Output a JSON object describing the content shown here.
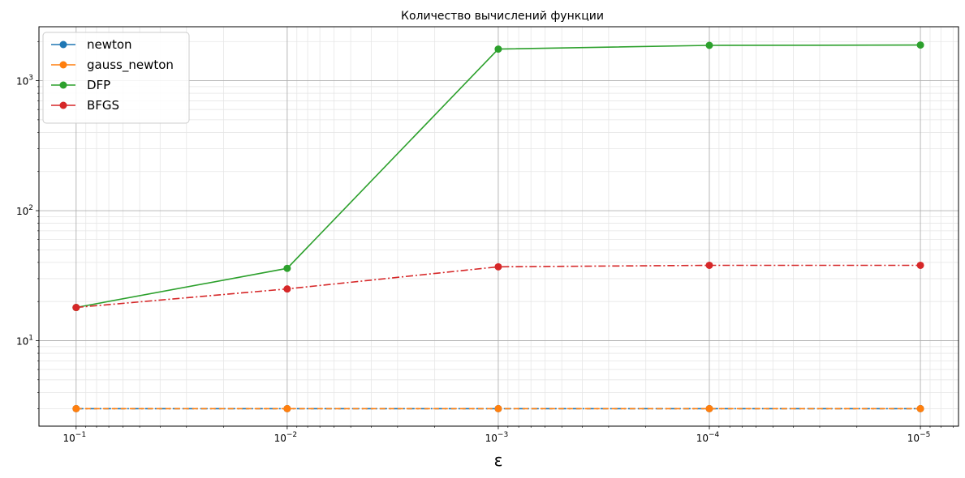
{
  "chart_data": {
    "type": "line",
    "title": "Количество вычислений функции",
    "xlabel": "ε",
    "ylabel": "",
    "xscale": "log",
    "yscale": "log",
    "x_inverted": true,
    "x": [
      0.1,
      0.01,
      0.001,
      0.0001,
      1e-05
    ],
    "xlim": [
      0.15,
      6.6e-06
    ],
    "ylim": [
      2.2,
      2600
    ],
    "x_ticks": [
      {
        "value": 0.1,
        "base": "10",
        "exp": "−1"
      },
      {
        "value": 0.01,
        "base": "10",
        "exp": "−2"
      },
      {
        "value": 0.001,
        "base": "10",
        "exp": "−3"
      },
      {
        "value": 0.0001,
        "base": "10",
        "exp": "−4"
      },
      {
        "value": 1e-05,
        "base": "10",
        "exp": "−5"
      }
    ],
    "y_ticks": [
      {
        "value": 10,
        "base": "10",
        "exp": "1"
      },
      {
        "value": 100,
        "base": "10",
        "exp": "2"
      },
      {
        "value": 1000,
        "base": "10",
        "exp": "3"
      }
    ],
    "grid": true,
    "legend_position": "top-left",
    "series": [
      {
        "name": "newton",
        "values": [
          3,
          3,
          3,
          3,
          3
        ],
        "color": "#1f77b4",
        "dash": "dashdot"
      },
      {
        "name": "gauss_newton",
        "values": [
          3,
          3,
          3,
          3,
          3
        ],
        "color": "#ff7f0e",
        "dash": "dashed"
      },
      {
        "name": "DFP",
        "values": [
          18,
          36,
          1750,
          1870,
          1880
        ],
        "color": "#2ca02c",
        "dash": "solid"
      },
      {
        "name": "BFGS",
        "values": [
          18,
          25,
          37,
          38,
          38
        ],
        "color": "#d62728",
        "dash": "dashdot"
      }
    ]
  }
}
